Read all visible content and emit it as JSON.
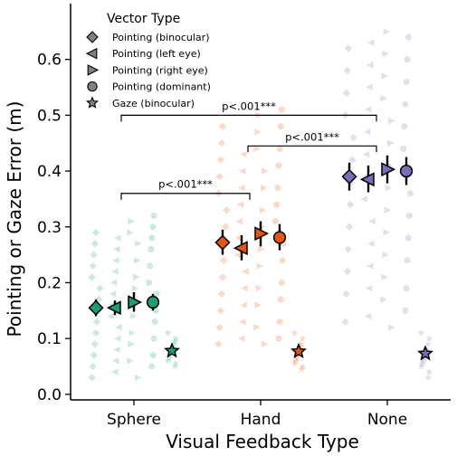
{
  "chart_data": {
    "type": "scatter",
    "xlabel": "Visual Feedback Type",
    "ylabel": "Pointing or Gaze Error (m)",
    "categories": [
      "Sphere",
      "Hand",
      "None"
    ],
    "ylim": [
      -0.01,
      0.7
    ],
    "yticks": [
      0.0,
      0.1,
      0.2,
      0.3,
      0.4,
      0.5,
      0.6
    ],
    "ytick_labels": [
      "0.0",
      "0.1",
      "0.2",
      "0.3",
      "0.4",
      "0.5",
      "0.6"
    ],
    "grid": false,
    "legend": {
      "title": "Vector Type",
      "placement": "top-left",
      "entries": [
        {
          "label": "Pointing (binocular)",
          "marker": "diamond"
        },
        {
          "label": "Pointing (left eye)",
          "marker": "triangle-left"
        },
        {
          "label": "Pointing (right eye)",
          "marker": "triangle-right"
        },
        {
          "label": "Pointing (dominant)",
          "marker": "circle"
        },
        {
          "label": "Gaze (binocular)",
          "marker": "star"
        }
      ]
    },
    "category_colors": {
      "Sphere": "#1b9e77",
      "Hand": "#e6550d",
      "None": "#7570b3"
    },
    "series": [
      {
        "name": "Pointing (binocular)",
        "marker": "diamond",
        "means": [
          0.155,
          0.272,
          0.39
        ],
        "ci_low": [
          0.14,
          0.25,
          0.365
        ],
        "ci_high": [
          0.17,
          0.295,
          0.415
        ]
      },
      {
        "name": "Pointing (left eye)",
        "marker": "triangle-left",
        "means": [
          0.155,
          0.262,
          0.385
        ],
        "ci_low": [
          0.142,
          0.24,
          0.362
        ],
        "ci_high": [
          0.168,
          0.285,
          0.41
        ]
      },
      {
        "name": "Pointing (right eye)",
        "marker": "triangle-right",
        "means": [
          0.165,
          0.288,
          0.403
        ],
        "ci_low": [
          0.148,
          0.265,
          0.378
        ],
        "ci_high": [
          0.183,
          0.31,
          0.428
        ]
      },
      {
        "name": "Pointing (dominant)",
        "marker": "circle",
        "means": [
          0.165,
          0.281,
          0.4
        ],
        "ci_low": [
          0.15,
          0.258,
          0.375
        ],
        "ci_high": [
          0.18,
          0.305,
          0.425
        ]
      },
      {
        "name": "Gaze (binocular)",
        "marker": "star",
        "means": [
          0.078,
          0.077,
          0.073
        ],
        "ci_low": [
          0.072,
          0.072,
          0.067
        ],
        "ci_high": [
          0.085,
          0.083,
          0.08
        ]
      }
    ],
    "raw_points": {
      "Sphere": [
        [
          0.03,
          0.05,
          0.07,
          0.09,
          0.11,
          0.13,
          0.15,
          0.17,
          0.19,
          0.21,
          0.23,
          0.25,
          0.27,
          0.29
        ],
        [
          0.04,
          0.06,
          0.08,
          0.1,
          0.12,
          0.14,
          0.16,
          0.18,
          0.2,
          0.22,
          0.24,
          0.26,
          0.28
        ],
        [
          0.03,
          0.06,
          0.09,
          0.11,
          0.14,
          0.16,
          0.19,
          0.21,
          0.24,
          0.27,
          0.29,
          0.31
        ],
        [
          0.05,
          0.07,
          0.1,
          0.13,
          0.15,
          0.18,
          0.2,
          0.23,
          0.26,
          0.28,
          0.3,
          0.32
        ],
        [
          0.05,
          0.055,
          0.06,
          0.065,
          0.07,
          0.075,
          0.08,
          0.085,
          0.09,
          0.095,
          0.1,
          0.11
        ]
      ],
      "Hand": [
        [
          0.09,
          0.12,
          0.15,
          0.18,
          0.21,
          0.24,
          0.27,
          0.3,
          0.33,
          0.36,
          0.39,
          0.42,
          0.45,
          0.48
        ],
        [
          0.1,
          0.13,
          0.16,
          0.19,
          0.22,
          0.25,
          0.28,
          0.31,
          0.34,
          0.37,
          0.4,
          0.43
        ],
        [
          0.09,
          0.12,
          0.16,
          0.19,
          0.23,
          0.26,
          0.3,
          0.33,
          0.37,
          0.4,
          0.44,
          0.47,
          0.5
        ],
        [
          0.1,
          0.13,
          0.17,
          0.2,
          0.24,
          0.27,
          0.31,
          0.34,
          0.37,
          0.41,
          0.44,
          0.48,
          0.51
        ],
        [
          0.045,
          0.05,
          0.055,
          0.06,
          0.065,
          0.07,
          0.075,
          0.08,
          0.085,
          0.09,
          0.1,
          0.11
        ]
      ],
      "None": [
        [
          0.13,
          0.18,
          0.22,
          0.26,
          0.3,
          0.34,
          0.38,
          0.42,
          0.46,
          0.5,
          0.54,
          0.58,
          0.62
        ],
        [
          0.14,
          0.19,
          0.23,
          0.27,
          0.31,
          0.35,
          0.39,
          0.43,
          0.47,
          0.51,
          0.55,
          0.59,
          0.63
        ],
        [
          0.12,
          0.17,
          0.21,
          0.25,
          0.29,
          0.33,
          0.37,
          0.41,
          0.45,
          0.49,
          0.53,
          0.57,
          0.61,
          0.65
        ],
        [
          0.15,
          0.19,
          0.24,
          0.28,
          0.32,
          0.36,
          0.4,
          0.44,
          0.48,
          0.52,
          0.56,
          0.6,
          0.64
        ],
        [
          0.03,
          0.04,
          0.05,
          0.055,
          0.06,
          0.065,
          0.07,
          0.075,
          0.08,
          0.09,
          0.1,
          0.11
        ]
      ]
    },
    "annotations": [
      {
        "text": "p<.001***",
        "from": "Sphere",
        "to": "Hand",
        "y": 0.36
      },
      {
        "text": "p<.001***",
        "from": "Hand",
        "to": "None",
        "y": 0.445
      },
      {
        "text": "p<.001***",
        "from": "Sphere",
        "to": "None",
        "y": 0.5
      }
    ]
  }
}
